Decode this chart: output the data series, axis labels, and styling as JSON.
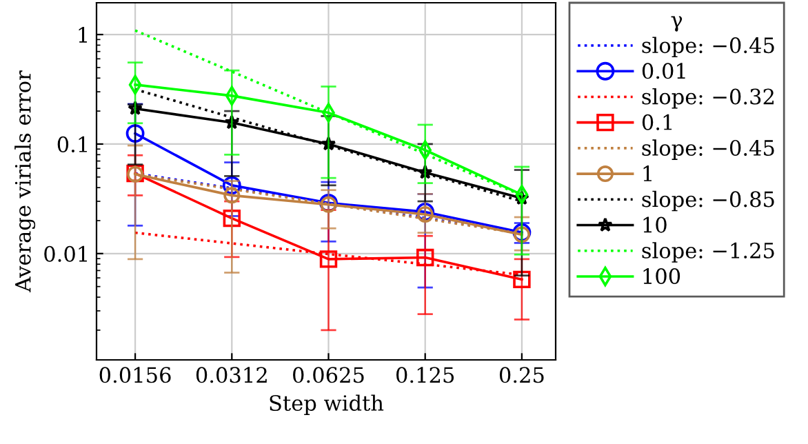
{
  "chart_data": {
    "type": "line",
    "xlabel": "Step width",
    "ylabel": "Average virials error",
    "legend_title": "γ",
    "categories": [
      "0.0156",
      "0.0312",
      "0.0625",
      "0.125",
      "0.25"
    ],
    "log": "y",
    "ylim": [
      0.00107,
      1.95
    ],
    "yticks": [
      0.01,
      0.1,
      1
    ],
    "grid": true,
    "legend": "right",
    "series": [
      {
        "name": "slope: −0.45",
        "color": "#0000ff",
        "line_style": "dotted",
        "marker": "none",
        "values": [
          0.054,
          0.0395,
          0.0289,
          0.0211,
          0.0155
        ]
      },
      {
        "name": "0.01",
        "color": "#0000ff",
        "line_style": "solid",
        "marker": "circle",
        "values": [
          0.125,
          0.042,
          0.029,
          0.024,
          0.0156
        ],
        "errors": [
          [
            0.018,
            0.232
          ],
          [
            0.022,
            0.068
          ],
          [
            0.0129,
            0.045
          ],
          [
            0.0049,
            0.035
          ],
          [
            0.0125,
            0.019
          ]
        ]
      },
      {
        "name": "slope: −0.32",
        "color": "#ff0000",
        "line_style": "dotted",
        "marker": "none",
        "values": [
          0.0155,
          0.0124,
          0.0099,
          0.008,
          0.0064
        ]
      },
      {
        "name": "0.1",
        "color": "#ff0000",
        "line_style": "solid",
        "marker": "square",
        "values": [
          0.054,
          0.021,
          0.0089,
          0.0092,
          0.0058
        ],
        "errors": [
          [
            0.034,
            0.079
          ],
          [
            0.0093,
            0.03
          ],
          [
            0.002,
            0.025
          ],
          [
            0.0028,
            0.0145
          ],
          [
            0.0025,
            0.0089
          ]
        ]
      },
      {
        "name": "slope: −0.45",
        "color": "#c08040",
        "line_style": "dotted",
        "marker": "none",
        "values": [
          0.053,
          0.0388,
          0.0284,
          0.0208,
          0.0152
        ]
      },
      {
        "name": "1",
        "color": "#c08040",
        "line_style": "solid",
        "marker": "circle",
        "values": [
          0.053,
          0.034,
          0.028,
          0.0228,
          0.0149
        ],
        "errors": [
          [
            0.0089,
            0.097
          ],
          [
            0.0067,
            0.046
          ],
          [
            0.017,
            0.038
          ],
          [
            0.0155,
            0.035
          ],
          [
            0.0107,
            0.0215
          ]
        ]
      },
      {
        "name": "slope: −0.85",
        "color": "#000000",
        "line_style": "dotted",
        "marker": "none",
        "values": [
          0.316,
          0.175,
          0.097,
          0.054,
          0.03
        ]
      },
      {
        "name": "10",
        "color": "#000000",
        "line_style": "solid",
        "marker": "star",
        "values": [
          0.211,
          0.157,
          0.1,
          0.055,
          0.032
        ],
        "errors": [
          [
            0.065,
            0.23
          ],
          [
            0.051,
            0.2
          ],
          [
            0.042,
            0.18
          ],
          [
            0.03,
            0.1
          ],
          [
            0.0063,
            0.058
          ]
        ]
      },
      {
        "name": "slope: −1.25",
        "color": "#00ff00",
        "line_style": "dotted",
        "marker": "none",
        "values": [
          1.09,
          0.459,
          0.193,
          0.081,
          0.034
        ]
      },
      {
        "name": "100",
        "color": "#00ff00",
        "line_style": "solid",
        "marker": "diamond",
        "values": [
          0.348,
          0.276,
          0.193,
          0.088,
          0.0345
        ],
        "errors": [
          [
            0.155,
            0.555
          ],
          [
            0.08,
            0.47
          ],
          [
            0.049,
            0.335
          ],
          [
            0.044,
            0.15
          ],
          [
            0.0098,
            0.062
          ]
        ]
      }
    ]
  }
}
